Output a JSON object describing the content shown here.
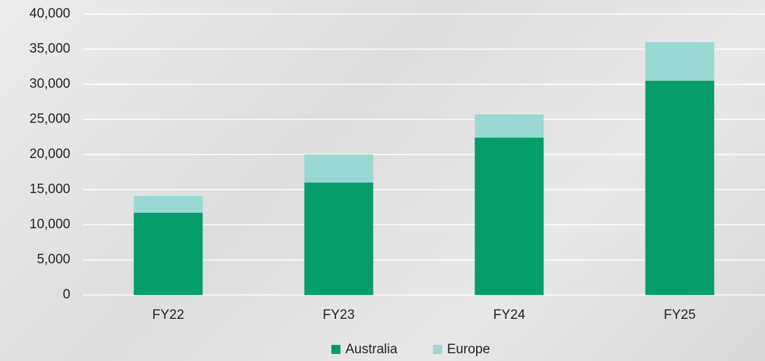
{
  "chart_data": {
    "type": "stacked_bar",
    "categories": [
      "FY22",
      "FY23",
      "FY24",
      "FY25"
    ],
    "series": [
      {
        "name": "Australia",
        "color": "#059e6b",
        "values": [
          11700,
          16000,
          22400,
          30500
        ]
      },
      {
        "name": "Europe",
        "color": "#9ad8d3",
        "values": [
          2400,
          4000,
          3300,
          5500
        ]
      }
    ],
    "ylim": [
      0,
      40000
    ],
    "yticks": [
      0,
      {
        "value": 5000,
        "label": "5,000"
      },
      {
        "value": 10000,
        "label": "10,000"
      },
      {
        "value": 15000,
        "label": "15,000"
      },
      {
        "value": 20000,
        "label": "20,000"
      },
      {
        "value": 25000,
        "label": "25,000"
      },
      {
        "value": 30000,
        "label": "30,000"
      },
      {
        "value": 35000,
        "label": "35,000"
      },
      {
        "value": 40000,
        "label": "40,000"
      }
    ],
    "grid": true,
    "legend": "bottom"
  }
}
